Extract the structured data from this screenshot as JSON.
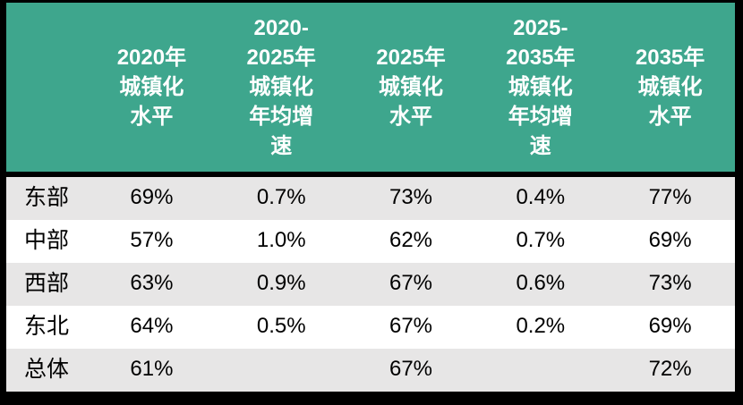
{
  "table": {
    "corner": "",
    "header_lines": [
      "2020年\n城镇化\n水平",
      "2020-\n2025年\n城镇化\n年均增\n速",
      "2025年\n城镇化\n水平",
      "2025-\n2035年\n城镇化\n年均增\n速",
      "2035年\n城镇化\n水平"
    ],
    "rows": [
      {
        "label": "东部",
        "values": [
          "69%",
          "0.7%",
          "73%",
          "0.4%",
          "77%"
        ]
      },
      {
        "label": "中部",
        "values": [
          "57%",
          "1.0%",
          "62%",
          "0.7%",
          "69%"
        ]
      },
      {
        "label": "西部",
        "values": [
          "63%",
          "0.9%",
          "67%",
          "0.6%",
          "73%"
        ]
      },
      {
        "label": "东北",
        "values": [
          "64%",
          "0.5%",
          "67%",
          "0.2%",
          "69%"
        ]
      },
      {
        "label": "总体",
        "values": [
          "61%",
          "",
          "67%",
          "",
          "72%"
        ]
      }
    ],
    "colors": {
      "header_bg": "#3EA68D",
      "header_text": "#FFFFFF",
      "stripe_row_bg": "#E7E6E6",
      "plain_row_bg": "#FFFFFF",
      "body_text": "#000000",
      "border": "#000000"
    }
  },
  "chart_data": {
    "type": "table",
    "title": "",
    "columns": [
      "",
      "2020年城镇化水平",
      "2020-2025年城镇化年均增速",
      "2025年城镇化水平",
      "2025-2035年城镇化年均增速",
      "2035年城镇化水平"
    ],
    "rows": [
      [
        "东部",
        "69%",
        "0.7%",
        "73%",
        "0.4%",
        "77%"
      ],
      [
        "中部",
        "57%",
        "1.0%",
        "62%",
        "0.7%",
        "69%"
      ],
      [
        "西部",
        "63%",
        "0.9%",
        "67%",
        "0.6%",
        "73%"
      ],
      [
        "东北",
        "64%",
        "0.5%",
        "67%",
        "0.2%",
        "69%"
      ],
      [
        "总体",
        "61%",
        "",
        "67%",
        "",
        "72%"
      ]
    ]
  }
}
